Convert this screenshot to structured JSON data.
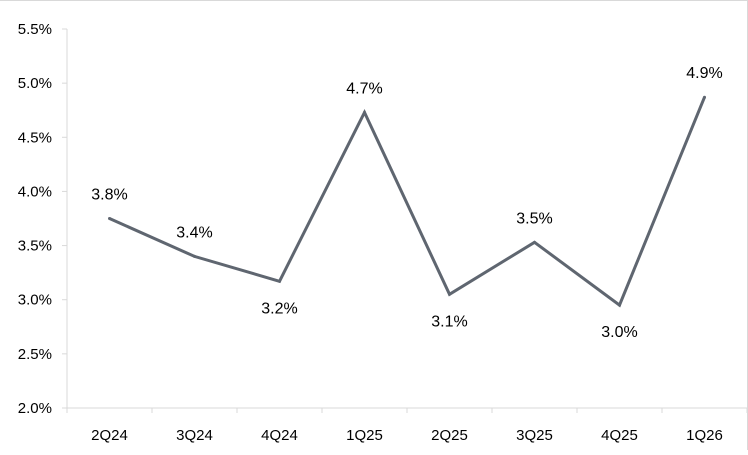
{
  "chart_data": {
    "type": "line",
    "title": "",
    "xlabel": "",
    "ylabel": "",
    "categories": [
      "2Q24",
      "3Q24",
      "4Q24",
      "1Q25",
      "2Q25",
      "3Q25",
      "4Q25",
      "1Q26"
    ],
    "series": [
      {
        "values": [
          3.75,
          3.4,
          3.17,
          4.73,
          3.05,
          3.53,
          2.95,
          4.87
        ],
        "data_labels": [
          "3.8%",
          "3.4%",
          "3.2%",
          "4.7%",
          "3.1%",
          "3.5%",
          "3.0%",
          "4.9%"
        ],
        "label_positions": [
          "above",
          "above",
          "below",
          "above",
          "below",
          "above",
          "below",
          "above"
        ],
        "color": "#5f6670"
      }
    ],
    "ylim": [
      2.0,
      5.5
    ],
    "yticks": [
      2.0,
      2.5,
      3.0,
      3.5,
      4.0,
      4.5,
      5.0,
      5.5
    ],
    "ytick_labels": [
      "2.0%",
      "2.5%",
      "3.0%",
      "3.5%",
      "4.0%",
      "4.5%",
      "5.0%",
      "5.5%"
    ],
    "grid": false,
    "legend": "none",
    "axis_color": "#d9d9d9"
  }
}
